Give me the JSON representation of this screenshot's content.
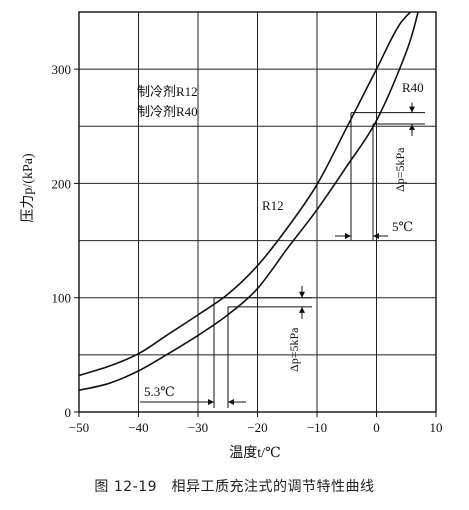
{
  "chart_data": {
    "type": "line",
    "caption": "图 12-19　相异工质充注式的调节特性曲线",
    "xlabel": "温度t/℃",
    "ylabel": "压力p/(kPa)",
    "xlim": [
      -50,
      10
    ],
    "ylim": [
      0,
      350
    ],
    "x_ticks": [
      -50,
      -40,
      -30,
      -20,
      -10,
      0,
      10
    ],
    "y_ticks": [
      0,
      100,
      200,
      300
    ],
    "grid": true,
    "legend_lines": [
      "制冷剂R12",
      "制冷剂R40"
    ],
    "series": [
      {
        "name": "R12",
        "x": [
          -50,
          -45,
          -40,
          -35,
          -30,
          -25,
          -20,
          -15,
          -10,
          -5,
          0,
          5,
          7
        ],
        "y": [
          19,
          25,
          36,
          51,
          67,
          85,
          108,
          143,
          177,
          215,
          255,
          315,
          350
        ]
      },
      {
        "name": "R40",
        "x": [
          -50,
          -45,
          -40,
          -35,
          -30,
          -25,
          -20,
          -15,
          -10,
          -5,
          0,
          4,
          8
        ],
        "y": [
          32,
          40,
          51,
          68,
          85,
          103,
          128,
          161,
          199,
          249,
          300,
          340,
          360
        ]
      }
    ],
    "annotations": {
      "r12_label": "R12",
      "r40_label": "R40",
      "dp_label": "Δp=5kPa",
      "dt_top_label": "5℃",
      "dt_bottom_label": "5.3℃"
    }
  }
}
